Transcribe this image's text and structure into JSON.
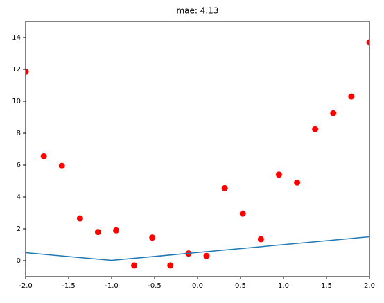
{
  "chart_data": {
    "type": "scatter",
    "title": "mae: 4.13",
    "series": [
      {
        "type": "scatter",
        "color": "#ff0000",
        "x": [
          -2.0,
          -1.789,
          -1.579,
          -1.368,
          -1.158,
          -0.947,
          -0.737,
          -0.526,
          -0.316,
          -0.105,
          0.105,
          0.316,
          0.526,
          0.737,
          0.947,
          1.158,
          1.368,
          1.579,
          1.789,
          2.0
        ],
        "values": [
          11.85,
          6.55,
          5.95,
          2.65,
          1.8,
          1.9,
          -0.3,
          1.45,
          -0.3,
          0.45,
          0.3,
          4.55,
          2.95,
          1.35,
          5.4,
          4.9,
          8.25,
          9.25,
          10.3,
          13.7
        ]
      },
      {
        "type": "line",
        "color": "#1f77b4",
        "x": [
          -2.0,
          -1.0,
          2.0
        ],
        "values": [
          0.5,
          0.02,
          1.5
        ]
      }
    ],
    "xlim": [
      -2.0,
      2.0
    ],
    "xticks": [
      {
        "value": -2.0,
        "label": "-2.0"
      },
      {
        "value": -1.5,
        "label": "-1.5"
      },
      {
        "value": -1.0,
        "label": "-1.0"
      },
      {
        "value": -0.5,
        "label": "-0.5"
      },
      {
        "value": 0.0,
        "label": "0.0"
      },
      0.5,
      {
        "value": 1.0,
        "label": "1.0"
      },
      1.5,
      {
        "value": 2.0,
        "label": "2.0"
      }
    ],
    "ylim": [
      -1,
      15
    ],
    "yticks": [
      0,
      2,
      4,
      6,
      8,
      10,
      12,
      14
    ]
  }
}
